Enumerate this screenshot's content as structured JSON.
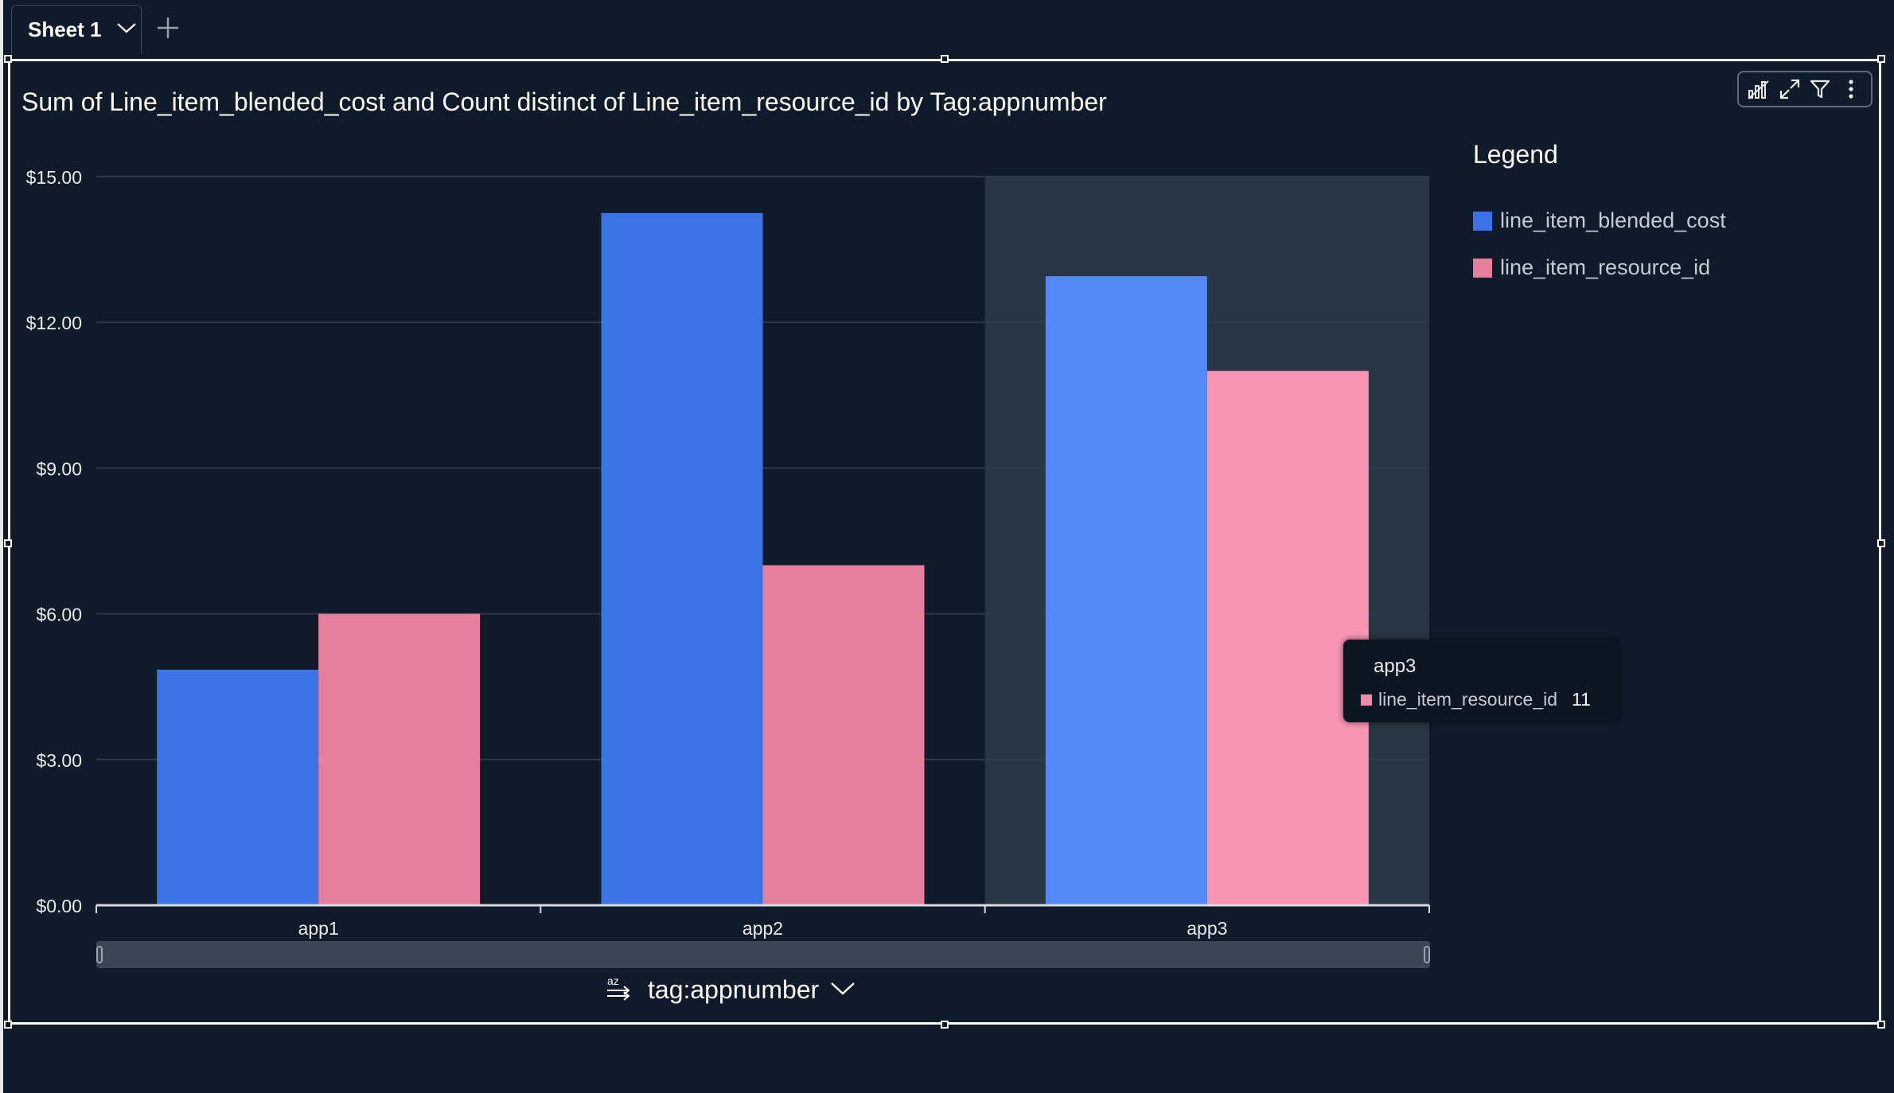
{
  "sheet_tab": {
    "label": "Sheet 1"
  },
  "visual": {
    "title": "Sum of Line_item_blended_cost and Count distinct of Line_item_resource_id by Tag:appnumber",
    "toolbar": [
      "visual-type-icon",
      "expand-icon",
      "filter-icon",
      "more-options-icon"
    ]
  },
  "legend": {
    "title": "Legend",
    "items": [
      {
        "label": "line_item_blended_cost",
        "color": "#3a73e6"
      },
      {
        "label": "line_item_resource_id",
        "color": "#e57f9e"
      }
    ]
  },
  "tooltip": {
    "category": "app3",
    "series": "line_item_resource_id",
    "value": "11"
  },
  "x_axis_field": {
    "label": "tag:appnumber",
    "sort_icon": "sort-az-icon"
  },
  "chart_data": {
    "type": "bar",
    "categories": [
      "app1",
      "app2",
      "app3"
    ],
    "series": [
      {
        "name": "line_item_blended_cost",
        "values": [
          4.85,
          14.25,
          12.95
        ],
        "color": "#3a73e6",
        "highlight_color": "#5489f8"
      },
      {
        "name": "line_item_resource_id",
        "values": [
          6,
          7,
          11
        ],
        "color": "#e57f9e",
        "highlight_color": "#f895b4"
      }
    ],
    "highlighted_category": "app3",
    "ylim": [
      0,
      15
    ],
    "yticks": [
      0,
      3,
      6,
      9,
      12,
      15
    ],
    "ytick_labels": [
      "$0.00",
      "$3.00",
      "$6.00",
      "$9.00",
      "$12.00",
      "$15.00"
    ],
    "grid": true,
    "legend_position": "right"
  }
}
